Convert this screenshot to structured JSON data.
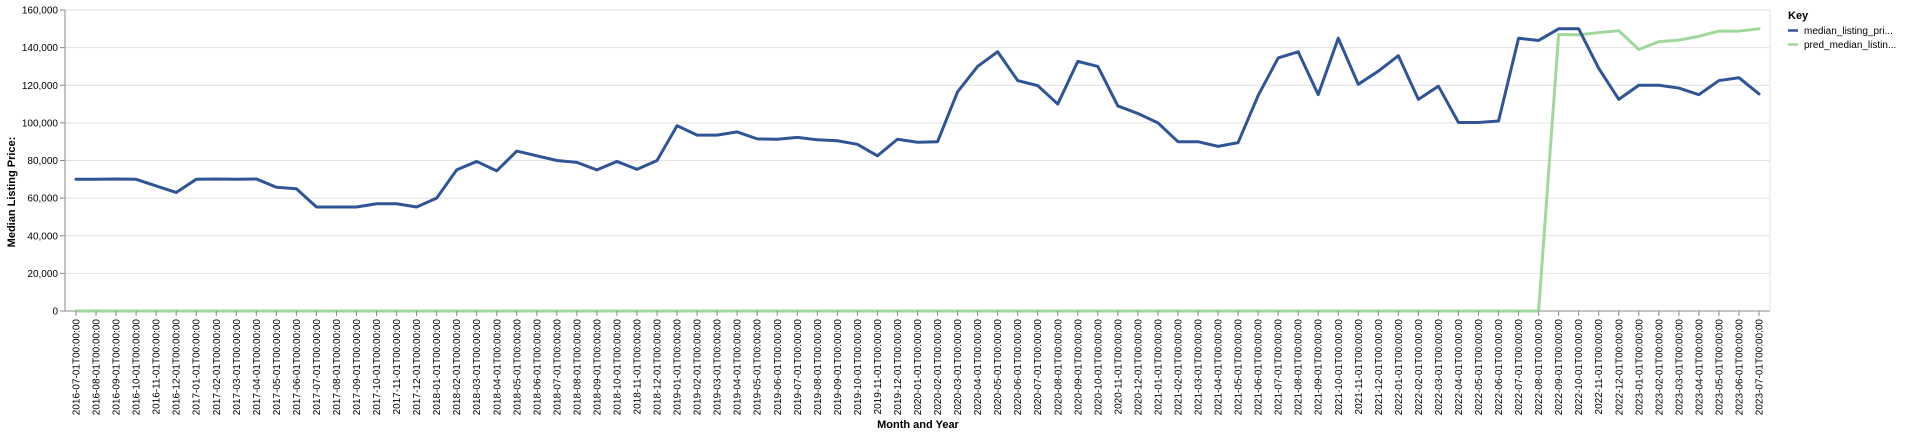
{
  "chart_data": {
    "type": "line",
    "xlabel": "Month and Year",
    "ylabel": "Median Listing Price:",
    "ylim": [
      0,
      160000
    ],
    "y_ticks": [
      "0",
      "20,000",
      "40,000",
      "60,000",
      "80,000",
      "100,000",
      "120,000",
      "140,000",
      "160,000"
    ],
    "grid": true,
    "legend": {
      "title": "Key",
      "position": "top-right"
    },
    "x": [
      "2016-07-01T00:00:00",
      "2016-08-01T00:00:00",
      "2016-09-01T00:00:00",
      "2016-10-01T00:00:00",
      "2016-11-01T00:00:00",
      "2016-12-01T00:00:00",
      "2017-01-01T00:00:00",
      "2017-02-01T00:00:00",
      "2017-03-01T00:00:00",
      "2017-04-01T00:00:00",
      "2017-05-01T00:00:00",
      "2017-06-01T00:00:00",
      "2017-07-01T00:00:00",
      "2017-08-01T00:00:00",
      "2017-09-01T00:00:00",
      "2017-10-01T00:00:00",
      "2017-11-01T00:00:00",
      "2017-12-01T00:00:00",
      "2018-01-01T00:00:00",
      "2018-02-01T00:00:00",
      "2018-03-01T00:00:00",
      "2018-04-01T00:00:00",
      "2018-05-01T00:00:00",
      "2018-06-01T00:00:00",
      "2018-07-01T00:00:00",
      "2018-08-01T00:00:00",
      "2018-09-01T00:00:00",
      "2018-10-01T00:00:00",
      "2018-11-01T00:00:00",
      "2018-12-01T00:00:00",
      "2019-01-01T00:00:00",
      "2019-02-01T00:00:00",
      "2019-03-01T00:00:00",
      "2019-04-01T00:00:00",
      "2019-05-01T00:00:00",
      "2019-06-01T00:00:00",
      "2019-07-01T00:00:00",
      "2019-08-01T00:00:00",
      "2019-09-01T00:00:00",
      "2019-10-01T00:00:00",
      "2019-11-01T00:00:00",
      "2019-12-01T00:00:00",
      "2020-01-01T00:00:00",
      "2020-02-01T00:00:00",
      "2020-03-01T00:00:00",
      "2020-04-01T00:00:00",
      "2020-05-01T00:00:00",
      "2020-06-01T00:00:00",
      "2020-07-01T00:00:00",
      "2020-08-01T00:00:00",
      "2020-09-01T00:00:00",
      "2020-10-01T00:00:00",
      "2020-11-01T00:00:00",
      "2020-12-01T00:00:00",
      "2021-01-01T00:00:00",
      "2021-02-01T00:00:00",
      "2021-03-01T00:00:00",
      "2021-04-01T00:00:00",
      "2021-05-01T00:00:00",
      "2021-06-01T00:00:00",
      "2021-07-01T00:00:00",
      "2021-08-01T00:00:00",
      "2021-09-01T00:00:00",
      "2021-10-01T00:00:00",
      "2021-11-01T00:00:00",
      "2021-12-01T00:00:00",
      "2022-01-01T00:00:00",
      "2022-02-01T00:00:00",
      "2022-03-01T00:00:00",
      "2022-04-01T00:00:00",
      "2022-05-01T00:00:00",
      "2022-06-01T00:00:00",
      "2022-07-01T00:00:00",
      "2022-08-01T00:00:00",
      "2022-09-01T00:00:00",
      "2022-10-01T00:00:00",
      "2022-11-01T00:00:00",
      "2022-12-01T00:00:00",
      "2023-01-01T00:00:00",
      "2023-02-01T00:00:00",
      "2023-03-01T00:00:00",
      "2023-04-01T00:00:00",
      "2023-05-01T00:00:00",
      "2023-06-01T00:00:00",
      "2023-07-01T00:00:00"
    ],
    "series": [
      {
        "name": "median_listing_pri...",
        "color": "#2f5597",
        "values": [
          70000,
          70000,
          70200,
          70000,
          66500,
          63000,
          70000,
          70200,
          70000,
          70200,
          65800,
          65000,
          55300,
          55300,
          55300,
          57000,
          57000,
          55300,
          60000,
          75000,
          79500,
          74500,
          85000,
          82500,
          80000,
          79000,
          75000,
          79500,
          75300,
          80000,
          98500,
          93500,
          93500,
          95200,
          91500,
          91300,
          92300,
          91000,
          90500,
          88600,
          82500,
          91300,
          89700,
          90000,
          116500,
          130000,
          137800,
          122500,
          119800,
          110000,
          132700,
          130000,
          109000,
          105000,
          100000,
          90000,
          90000,
          87500,
          89500,
          114500,
          134500,
          137800,
          115000,
          145000,
          120500,
          127500,
          135700,
          112500,
          119500,
          100200,
          100200,
          101000,
          145000,
          143800,
          150000,
          150000,
          129000,
          112500,
          120000,
          120000,
          118500,
          115000,
          122500,
          124000,
          115400
        ]
      },
      {
        "name": "pred_median_listin...",
        "color": "#9fd89a",
        "values": [
          0,
          0,
          0,
          0,
          0,
          0,
          0,
          0,
          0,
          0,
          0,
          0,
          0,
          0,
          0,
          0,
          0,
          0,
          0,
          0,
          0,
          0,
          0,
          0,
          0,
          0,
          0,
          0,
          0,
          0,
          0,
          0,
          0,
          0,
          0,
          0,
          0,
          0,
          0,
          0,
          0,
          0,
          0,
          0,
          0,
          0,
          0,
          0,
          0,
          0,
          0,
          0,
          0,
          0,
          0,
          0,
          0,
          0,
          0,
          0,
          0,
          0,
          0,
          0,
          0,
          0,
          0,
          0,
          0,
          0,
          0,
          0,
          0,
          0,
          147000,
          146800,
          148000,
          149000,
          139000,
          143200,
          144000,
          146000,
          148800,
          148800,
          150000
        ]
      }
    ]
  }
}
